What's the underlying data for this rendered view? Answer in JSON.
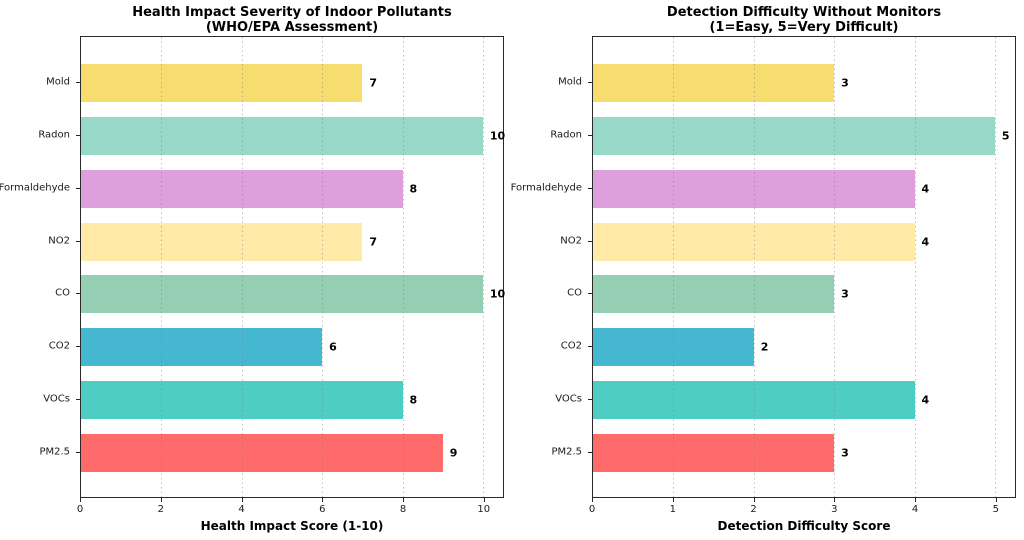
{
  "figure": {
    "background": "#ffffff"
  },
  "chart_data": [
    {
      "type": "bar",
      "orientation": "horizontal",
      "title": "Health Impact Severity of Indoor Pollutants",
      "subtitle": "(WHO/EPA Assessment)",
      "xlabel": "Health Impact Score (1-10)",
      "categories": [
        "Mold",
        "Radon",
        "Formaldehyde",
        "NO2",
        "CO",
        "CO2",
        "VOCs",
        "PM2.5"
      ],
      "values": [
        7,
        10,
        8,
        7,
        10,
        6,
        8,
        9
      ],
      "colors": [
        "#F7DC6F",
        "#98D8C8",
        "#DDA0DD",
        "#FFEAA7",
        "#96CEB4",
        "#45B7D1",
        "#4ECDC4",
        "#FF6B6B"
      ],
      "xlim": [
        0,
        10.5
      ],
      "xticks": [
        0,
        2,
        4,
        6,
        8,
        10
      ],
      "grid": true,
      "grid_style": "dotted",
      "legend": false,
      "value_labels": true
    },
    {
      "type": "bar",
      "orientation": "horizontal",
      "title": "Detection Difficulty Without Monitors",
      "subtitle": "(1=Easy, 5=Very Difficult)",
      "xlabel": "Detection Difficulty Score",
      "categories": [
        "Mold",
        "Radon",
        "Formaldehyde",
        "NO2",
        "CO",
        "CO2",
        "VOCs",
        "PM2.5"
      ],
      "values": [
        3,
        5,
        4,
        4,
        3,
        2,
        4,
        3
      ],
      "colors": [
        "#F7DC6F",
        "#98D8C8",
        "#DDA0DD",
        "#FFEAA7",
        "#96CEB4",
        "#45B7D1",
        "#4ECDC4",
        "#FF6B6B"
      ],
      "xlim": [
        0,
        5.25
      ],
      "xticks": [
        0,
        1,
        2,
        3,
        4,
        5
      ],
      "grid": true,
      "grid_style": "dotted",
      "legend": false,
      "value_labels": true
    }
  ]
}
